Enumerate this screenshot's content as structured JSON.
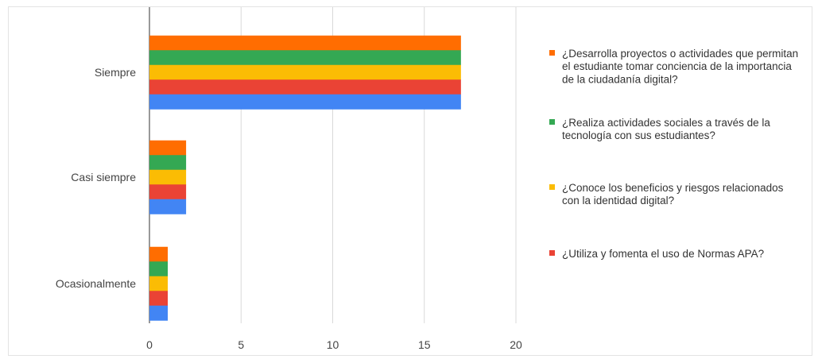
{
  "chart_data": {
    "type": "bar",
    "orientation": "horizontal",
    "categories": [
      "Siempre",
      "Casi siempre",
      "Ocasionalmente"
    ],
    "series": [
      {
        "name": "¿Desarrolla proyectos o actividades que permitan el estudiante tomar conciencia de la importancia de la ciudadanía digital?",
        "color": "#ff6d01",
        "values": [
          17,
          2,
          1
        ]
      },
      {
        "name": "¿Realiza actividades sociales a través de la tecnología con sus estudiantes?",
        "color": "#34a853",
        "values": [
          17,
          2,
          1
        ]
      },
      {
        "name": "¿Conoce los beneficios y riesgos relacionados con la identidad digital?",
        "color": "#fbbc04",
        "values": [
          17,
          2,
          1
        ]
      },
      {
        "name": "¿Utiliza y fomenta el uso de Normas APA?",
        "color": "#ea4335",
        "values": [
          17,
          2,
          1
        ]
      },
      {
        "name": "",
        "color": "#4285f4",
        "values": [
          17,
          2,
          1
        ]
      }
    ],
    "xlim": [
      0,
      20
    ],
    "xticks": [
      0,
      5,
      10,
      15,
      20
    ],
    "grid": true,
    "legend_position": "right",
    "title": "",
    "xlabel": "",
    "ylabel": ""
  }
}
